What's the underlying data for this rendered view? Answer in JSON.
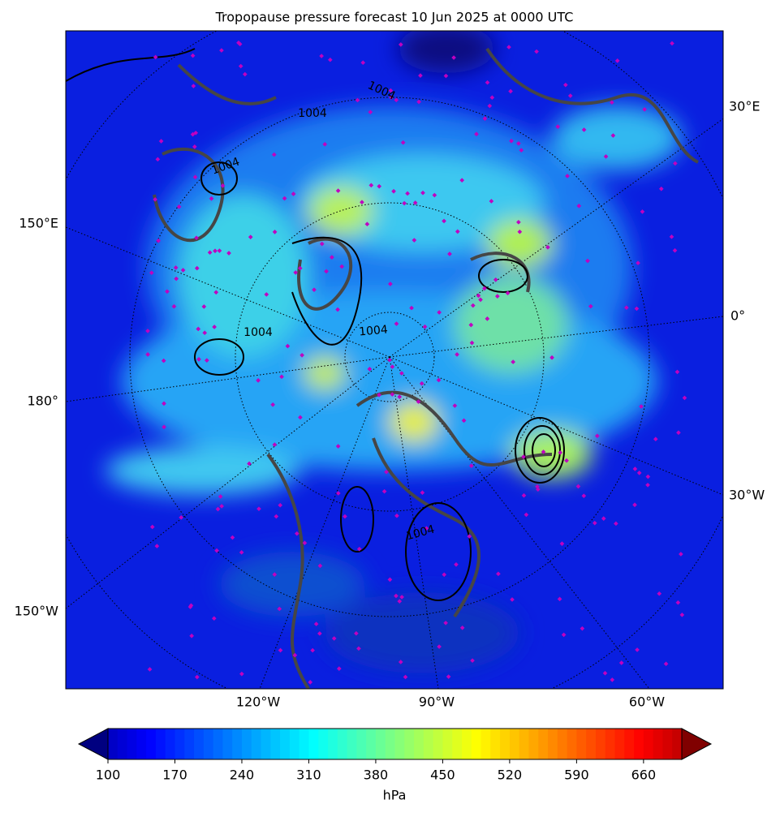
{
  "title": "Tropopause pressure forecast 10 Jun 2025 at 0000 UTC",
  "map": {
    "lon_labels": [
      "30°E",
      "150°E",
      "0°",
      "180°",
      "30°W",
      "150°W",
      "120°W",
      "90°W",
      "60°W"
    ],
    "contour_labels": [
      "1004",
      "1004",
      "1004",
      "1004",
      "1004",
      "1004"
    ]
  },
  "colorbar": {
    "label": "hPa",
    "colormap": "jet",
    "lim": [
      100,
      700
    ],
    "extend": "both",
    "ticks": [
      100,
      170,
      240,
      310,
      380,
      450,
      520,
      590,
      660
    ]
  }
}
